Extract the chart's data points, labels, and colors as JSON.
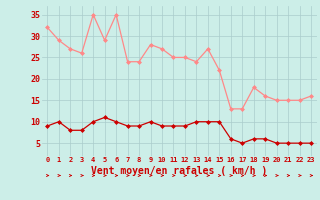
{
  "hours": [
    0,
    1,
    2,
    3,
    4,
    5,
    6,
    7,
    8,
    9,
    10,
    11,
    12,
    13,
    14,
    15,
    16,
    17,
    18,
    19,
    20,
    21,
    22,
    23
  ],
  "rafales": [
    32,
    29,
    27,
    26,
    35,
    29,
    35,
    24,
    24,
    28,
    27,
    25,
    25,
    24,
    27,
    22,
    13,
    13,
    18,
    16,
    15,
    15,
    15,
    16
  ],
  "moyen": [
    9,
    10,
    8,
    8,
    10,
    11,
    10,
    9,
    9,
    10,
    9,
    9,
    9,
    10,
    10,
    10,
    6,
    5,
    6,
    6,
    5,
    5,
    5,
    5
  ],
  "line_color_rafales": "#ff8888",
  "line_color_moyen": "#cc0000",
  "bg_color": "#cceee8",
  "grid_color": "#aacccc",
  "axis_color": "#cc0000",
  "xlabel": "Vent moyen/en rafales ( km/h )",
  "xlabel_fontsize": 7,
  "ytick_fontsize": 6,
  "xtick_fontsize": 5,
  "yticks": [
    5,
    10,
    15,
    20,
    25,
    30,
    35
  ],
  "ylim": [
    2,
    37
  ],
  "xlim": [
    -0.5,
    23.5
  ]
}
